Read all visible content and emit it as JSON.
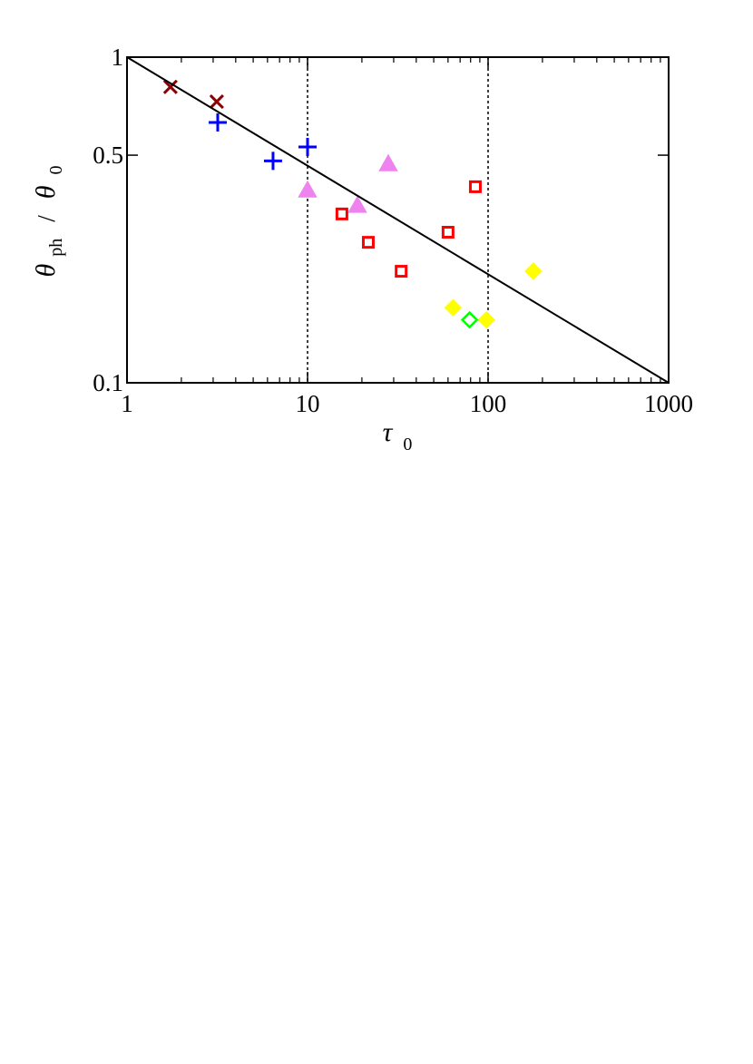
{
  "chart_data": {
    "type": "scatter",
    "xlog": true,
    "ylog": true,
    "xlabel": [
      "τ",
      "0"
    ],
    "ylabel": [
      "θ",
      "ph",
      "/",
      "θ",
      "0"
    ],
    "xlim": [
      1,
      1000
    ],
    "ylim": [
      0.1,
      1
    ],
    "xticks": [
      1,
      10,
      100,
      1000
    ],
    "yticks": [
      0.1,
      0.5,
      1
    ],
    "minor_ticks": true,
    "vlines": [
      10,
      100
    ],
    "series": [
      {
        "marker": "x",
        "color": "#8b0000",
        "filled": false,
        "x": [
          1.74,
          3.14
        ],
        "values": [
          0.81,
          0.73
        ]
      },
      {
        "marker": "plus",
        "color": "#0000ff",
        "filled": false,
        "x": [
          3.18,
          6.44,
          10
        ],
        "values": [
          0.63,
          0.48,
          0.53
        ]
      },
      {
        "marker": "triangle",
        "color": "#ee82ee",
        "filled": true,
        "x": [
          10,
          18.9,
          28
        ],
        "values": [
          0.39,
          0.35,
          0.47
        ]
      },
      {
        "marker": "square",
        "color": "#ff0000",
        "filled": false,
        "x": [
          15.5,
          21.7,
          33,
          60,
          85
        ],
        "values": [
          0.33,
          0.27,
          0.22,
          0.29,
          0.4
        ]
      },
      {
        "marker": "diamond",
        "color": "#ffff00",
        "filled": true,
        "x": [
          64,
          98,
          178
        ],
        "values": [
          0.17,
          0.156,
          0.22
        ]
      },
      {
        "marker": "diamond",
        "color": "#00ff00",
        "filled": false,
        "x": [
          79
        ],
        "values": [
          0.156
        ]
      },
      {
        "marker": "line",
        "color": "#000000",
        "x": [
          1,
          1000
        ],
        "values": [
          1,
          0.1
        ]
      }
    ]
  }
}
